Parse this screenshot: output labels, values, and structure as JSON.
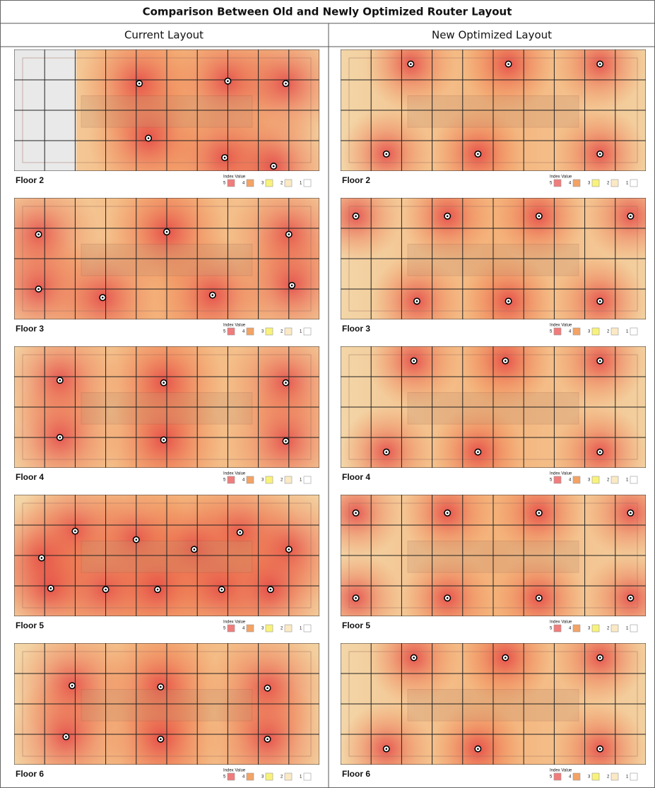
{
  "title": "Comparison Between Old and Newly Optimized Router Layout",
  "legend": {
    "title": "Index Value",
    "items": [
      {
        "label": "5",
        "color": "#f07c7c"
      },
      {
        "label": "4",
        "color": "#f3a366"
      },
      {
        "label": "3",
        "color": "#f8f27a"
      },
      {
        "label": "2",
        "color": "#fbe9c4"
      },
      {
        "label": "1",
        "color": "#ffffff"
      }
    ]
  },
  "columns": [
    {
      "header": "Current Layout",
      "floors": [
        {
          "label": "Floor 2"
        },
        {
          "label": "Floor 3"
        },
        {
          "label": "Floor 4"
        },
        {
          "label": "Floor 5"
        },
        {
          "label": "Floor 6"
        }
      ]
    },
    {
      "header": "New Optimized Layout",
      "floors": [
        {
          "label": "Floor 2"
        },
        {
          "label": "Floor 3"
        },
        {
          "label": "Floor 4"
        },
        {
          "label": "Floor 5"
        },
        {
          "label": "Floor 6"
        }
      ]
    }
  ]
}
